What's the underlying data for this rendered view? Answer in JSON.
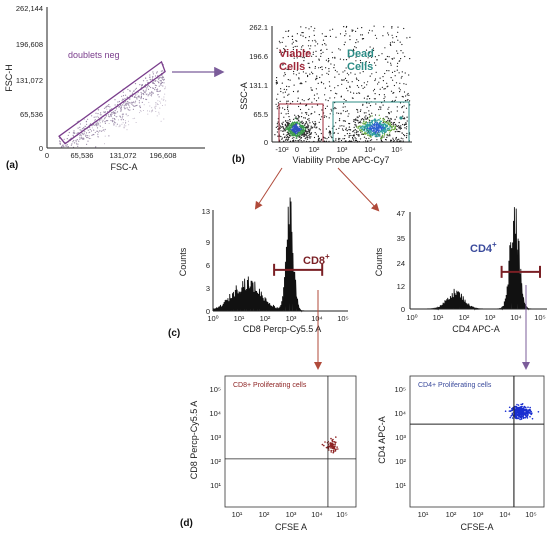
{
  "colors": {
    "axis": "#222222",
    "gate_doublets": "#7a3d8c",
    "viable": "#a0283a",
    "dead": "#2d8c86",
    "arrow_red": "#b04a3a",
    "arrow_purple": "#7b5c9a",
    "cd8_bar": "#7a1f24",
    "cd4_bar": "#7a1f24",
    "cd4_text": "#3a4a9c",
    "dots_red": "#8e2424",
    "dots_blue": "#1a2fd0"
  },
  "panel_labels": {
    "a": "(a)",
    "b": "(b)",
    "c": "(c)",
    "d": "(d)"
  },
  "chart_data": [
    {
      "id": "a",
      "type": "scatter",
      "title": "",
      "xlabel": "FSC-A",
      "ylabel": "FSC-H",
      "xlim": [
        0,
        262144
      ],
      "ylim": [
        0,
        262144
      ],
      "x_ticks": [
        "0",
        "65,536",
        "131,072",
        "196,608"
      ],
      "y_ticks": [
        "0",
        "65,536",
        "131,072",
        "196,608",
        "262,144"
      ],
      "gate_label": "doublets neg",
      "gate_polygon": [
        [
          20000,
          22000
        ],
        [
          190000,
          160000
        ],
        [
          196000,
          142000
        ],
        [
          30000,
          8000
        ]
      ]
    },
    {
      "id": "b",
      "type": "scatter",
      "xlabel": "Viability Probe APC-Cy7",
      "ylabel": "SSC-A",
      "y_ticks": [
        "0",
        "65.5",
        "131.1",
        "196.6",
        "262.1"
      ],
      "x_ticks": [
        "-10²",
        "0",
        "10²",
        "10³",
        "10⁴",
        "10⁵"
      ],
      "annotations": [
        {
          "text_line1": "Viable",
          "text_line2": "Cells"
        },
        {
          "text_line1": "Dead",
          "text_line2": "Cells"
        }
      ],
      "tick_ylim": [
        0,
        262.1
      ]
    },
    {
      "id": "c1",
      "type": "line",
      "xlabel": "CD8 Percp-Cy5.5 A",
      "ylabel": "Counts",
      "y_ticks": [
        "0",
        "3",
        "6",
        "9",
        "13"
      ],
      "x_ticks": [
        "10⁰",
        "10¹",
        "10²",
        "10³",
        "10⁴",
        "10⁵"
      ],
      "gate_label": "CD8",
      "gate_sup": "+",
      "ylim": [
        0,
        13
      ],
      "xlog": [
        0,
        5
      ],
      "gate_range": [
        2.35,
        4.2
      ],
      "gate_y": 5.3,
      "peaks": [
        {
          "center": 1.3,
          "width": 0.55,
          "height": 3.6
        },
        {
          "center": 2.95,
          "width": 0.14,
          "height": 12.5
        }
      ]
    },
    {
      "id": "c2",
      "type": "line",
      "xlabel": "CD4 APC-A",
      "ylabel": "Counts",
      "y_ticks": [
        "0",
        "12",
        "24",
        "35",
        "47"
      ],
      "x_ticks": [
        "10⁰",
        "10¹",
        "10²",
        "10³",
        "10⁴",
        "10⁵"
      ],
      "gate_label": "CD4",
      "gate_sup": "+",
      "ylim": [
        0,
        47
      ],
      "xlog": [
        0,
        5
      ],
      "gate_range": [
        3.5,
        5.0
      ],
      "gate_y": 18,
      "peaks": [
        {
          "center": 1.7,
          "width": 0.32,
          "height": 8
        },
        {
          "center": 4.0,
          "width": 0.17,
          "height": 46
        }
      ]
    },
    {
      "id": "d1",
      "type": "scatter",
      "title": "CD8+ Proliferating cells",
      "xlabel": "CFSE A",
      "ylabel": "CD8 Percp-Cy5.5 A",
      "x_ticks": [
        "10¹",
        "10²",
        "10³",
        "10⁴",
        "10⁵"
      ],
      "y_ticks": [
        "10¹",
        "10²",
        "10³",
        "10⁴",
        "10⁵"
      ],
      "xlog": [
        0.5,
        5.4
      ],
      "ylog": [
        0.5,
        5.4
      ],
      "quadrant": {
        "x": 4.35,
        "y": 2.3
      },
      "cluster": {
        "x": 4.5,
        "y": 2.75
      }
    },
    {
      "id": "d2",
      "type": "scatter",
      "title": "CD4+ Proliferating cells",
      "xlabel": "CFSE-A",
      "ylabel": "CD4 APC-A",
      "x_ticks": [
        "10¹",
        "10²",
        "10³",
        "10⁴",
        "10⁵"
      ],
      "y_ticks": [
        "10¹",
        "10²",
        "10³",
        "10⁴",
        "10⁵"
      ],
      "xlog": [
        0.5,
        5.4
      ],
      "ylog": [
        0.5,
        5.4
      ],
      "quadrant": {
        "x": 4.3,
        "y": 3.6
      },
      "cluster": {
        "x": 4.55,
        "y": 4.05
      }
    }
  ]
}
